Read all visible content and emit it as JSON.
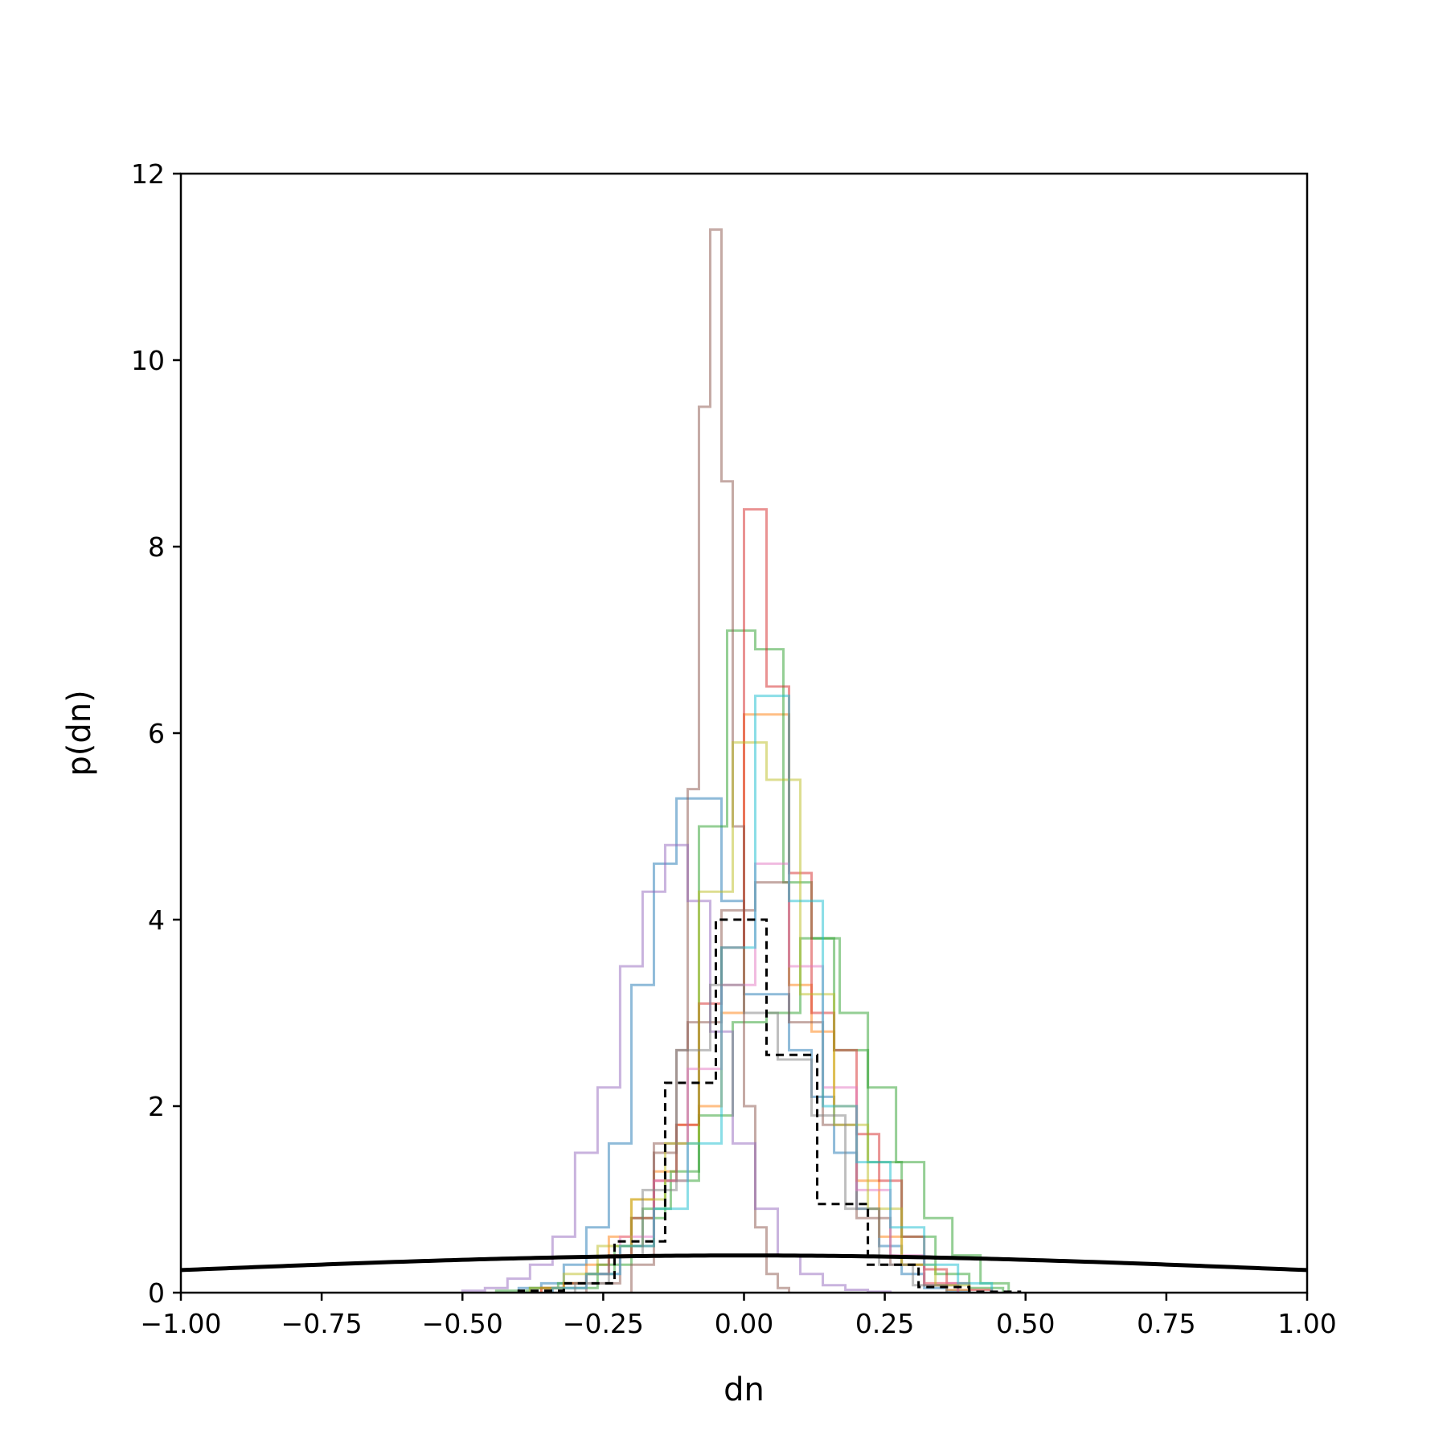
{
  "chart_data": {
    "type": "line",
    "xlabel": "dn",
    "ylabel": "p(dn)",
    "xlim": [
      -1.0,
      1.0
    ],
    "ylim": [
      0,
      12
    ],
    "x_ticks": [
      "−1.00",
      "−0.75",
      "−0.50",
      "−0.25",
      "0.00",
      "0.25",
      "0.50",
      "0.75",
      "1.00"
    ],
    "x_tick_values": [
      -1.0,
      -0.75,
      -0.5,
      -0.25,
      0.0,
      0.25,
      0.5,
      0.75,
      1.0
    ],
    "y_ticks": [
      "0",
      "2",
      "4",
      "6",
      "8",
      "10",
      "12"
    ],
    "y_tick_values": [
      0,
      2,
      4,
      6,
      8,
      10,
      12
    ],
    "grid": false,
    "legend": "none",
    "series": [
      {
        "kind": "step",
        "color": "#1f77b4",
        "edges": [
          -0.4,
          -0.36,
          -0.32,
          -0.28,
          -0.24,
          -0.2,
          -0.16,
          -0.12,
          -0.08,
          -0.04,
          0.0,
          0.04,
          0.08,
          0.12,
          0.16,
          0.2,
          0.24,
          0.28,
          0.32,
          0.36,
          0.4
        ],
        "values": [
          0.05,
          0.1,
          0.3,
          0.7,
          1.6,
          3.3,
          4.6,
          5.3,
          5.3,
          4.2,
          3.2,
          3.2,
          2.6,
          2.1,
          1.5,
          0.9,
          0.5,
          0.2,
          0.05,
          0.02
        ]
      },
      {
        "kind": "step",
        "color": "#ff7f0e",
        "edges": [
          -0.36,
          -0.32,
          -0.28,
          -0.24,
          -0.2,
          -0.16,
          -0.12,
          -0.08,
          -0.04,
          0.0,
          0.04,
          0.08,
          0.12,
          0.16,
          0.2,
          0.24,
          0.28,
          0.32,
          0.36,
          0.4
        ],
        "values": [
          0.05,
          0.1,
          0.3,
          0.6,
          1.0,
          1.3,
          1.8,
          2.0,
          3.0,
          6.2,
          6.2,
          3.3,
          2.8,
          2.0,
          1.2,
          0.6,
          0.3,
          0.1,
          0.03
        ]
      },
      {
        "kind": "step",
        "color": "#2ca02c",
        "edges": [
          -0.44,
          -0.38,
          -0.33,
          -0.28,
          -0.23,
          -0.18,
          -0.13,
          -0.08,
          -0.03,
          0.02,
          0.07,
          0.12,
          0.17,
          0.22,
          0.27,
          0.32,
          0.37,
          0.42,
          0.47
        ],
        "values": [
          0.02,
          0.05,
          0.1,
          0.2,
          0.5,
          0.9,
          1.3,
          5.0,
          7.1,
          6.9,
          4.4,
          3.8,
          3.0,
          2.2,
          1.4,
          0.8,
          0.4,
          0.1
        ]
      },
      {
        "kind": "step",
        "color": "#2ca02c",
        "edges": [
          -0.32,
          -0.26,
          -0.2,
          -0.14,
          -0.08,
          -0.02,
          0.04,
          0.1,
          0.16,
          0.22,
          0.28,
          0.34,
          0.4,
          0.46
        ],
        "values": [
          0.05,
          0.3,
          0.8,
          1.2,
          1.9,
          2.9,
          3.0,
          3.8,
          2.6,
          1.4,
          0.6,
          0.2,
          0.05
        ]
      },
      {
        "kind": "step",
        "color": "#d62728",
        "edges": [
          -0.36,
          -0.32,
          -0.28,
          -0.24,
          -0.2,
          -0.16,
          -0.12,
          -0.08,
          -0.04,
          0.0,
          0.04,
          0.08,
          0.12,
          0.16,
          0.2,
          0.24,
          0.28,
          0.32,
          0.36,
          0.4,
          0.44
        ],
        "values": [
          0.05,
          0.1,
          0.2,
          0.4,
          0.8,
          1.2,
          1.8,
          3.1,
          3.7,
          8.4,
          6.5,
          4.5,
          3.0,
          2.6,
          1.7,
          1.2,
          0.6,
          0.25,
          0.1,
          0.03
        ]
      },
      {
        "kind": "step",
        "color": "#8c564b",
        "edges": [
          -0.2,
          -0.16,
          -0.12,
          -0.1,
          -0.08,
          -0.06,
          -0.04,
          -0.02,
          0.0,
          0.02,
          0.04,
          0.06,
          0.08
        ],
        "values": [
          0.3,
          1.5,
          2.6,
          5.4,
          9.5,
          11.4,
          8.7,
          5.0,
          2.0,
          0.7,
          0.2,
          0.05
        ]
      },
      {
        "kind": "step",
        "color": "#8c564b",
        "edges": [
          -0.28,
          -0.22,
          -0.16,
          -0.1,
          -0.04,
          0.02,
          0.08,
          0.14,
          0.2,
          0.26,
          0.32,
          0.38
        ],
        "values": [
          0.1,
          0.5,
          1.6,
          2.9,
          4.1,
          4.4,
          2.9,
          1.8,
          0.8,
          0.3,
          0.08
        ]
      },
      {
        "kind": "step",
        "color": "#9467bd",
        "edges": [
          -0.5,
          -0.46,
          -0.42,
          -0.38,
          -0.34,
          -0.3,
          -0.26,
          -0.22,
          -0.18,
          -0.14,
          -0.1,
          -0.06,
          -0.02,
          0.02,
          0.06,
          0.1,
          0.14,
          0.18,
          0.22,
          0.26
        ],
        "values": [
          0.02,
          0.05,
          0.15,
          0.3,
          0.6,
          1.5,
          2.2,
          3.5,
          4.3,
          4.8,
          4.2,
          2.8,
          1.6,
          0.9,
          0.4,
          0.2,
          0.08,
          0.03,
          0.01
        ]
      },
      {
        "kind": "step",
        "color": "#e377c2",
        "edges": [
          -0.34,
          -0.28,
          -0.22,
          -0.16,
          -0.1,
          -0.04,
          0.02,
          0.08,
          0.14,
          0.2,
          0.26,
          0.32,
          0.38
        ],
        "values": [
          0.05,
          0.2,
          0.6,
          1.2,
          2.4,
          3.3,
          4.6,
          3.5,
          2.2,
          1.1,
          0.4,
          0.1
        ]
      },
      {
        "kind": "step",
        "color": "#bcbd22",
        "edges": [
          -0.38,
          -0.32,
          -0.26,
          -0.2,
          -0.14,
          -0.08,
          -0.02,
          0.04,
          0.1,
          0.16,
          0.22,
          0.28,
          0.34,
          0.4
        ],
        "values": [
          0.05,
          0.2,
          0.5,
          1.0,
          1.6,
          4.3,
          5.9,
          5.5,
          3.2,
          1.8,
          0.9,
          0.3,
          0.08
        ]
      },
      {
        "kind": "step",
        "color": "#17becf",
        "edges": [
          -0.34,
          -0.28,
          -0.22,
          -0.16,
          -0.1,
          -0.04,
          0.02,
          0.08,
          0.14,
          0.2,
          0.26,
          0.32,
          0.38,
          0.44
        ],
        "values": [
          0.05,
          0.2,
          0.5,
          0.9,
          1.6,
          3.7,
          6.4,
          4.2,
          2.0,
          1.4,
          0.7,
          0.3,
          0.1
        ]
      },
      {
        "kind": "step",
        "color": "#7f7f7f",
        "edges": [
          -0.3,
          -0.24,
          -0.18,
          -0.12,
          -0.06,
          0.0,
          0.06,
          0.12,
          0.18,
          0.24,
          0.3,
          0.36
        ],
        "values": [
          0.1,
          0.4,
          1.1,
          2.6,
          3.3,
          3.0,
          2.5,
          1.9,
          0.9,
          0.3,
          0.08
        ]
      },
      {
        "kind": "step",
        "color": "#000000",
        "dashed": true,
        "edges": [
          -0.4,
          -0.32,
          -0.23,
          -0.14,
          -0.05,
          0.04,
          0.13,
          0.22,
          0.31,
          0.4,
          0.49
        ],
        "values": [
          0.02,
          0.1,
          0.55,
          2.25,
          4.0,
          2.55,
          0.95,
          0.3,
          0.06,
          0.01
        ]
      },
      {
        "kind": "curve",
        "color": "#000000",
        "mean": 0.0,
        "sigma": 1.0,
        "note_values": "standard normal density"
      }
    ]
  }
}
